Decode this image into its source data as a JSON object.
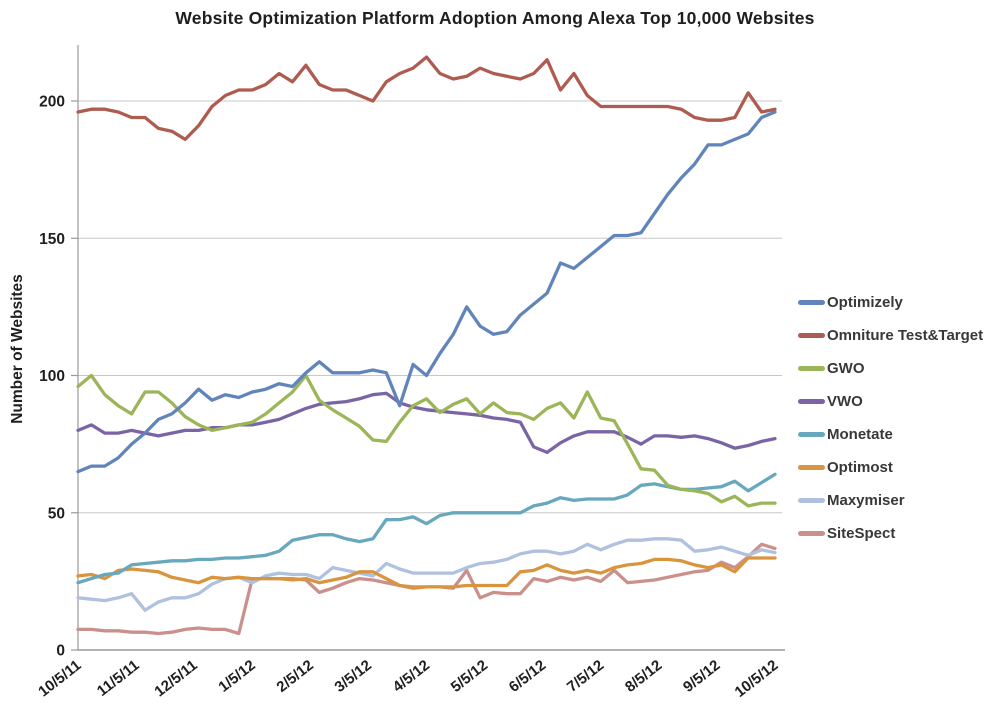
{
  "chart_data": {
    "type": "line",
    "title": "Website Optimization Platform Adoption Among Alexa Top 10,000 Websites",
    "xlabel": "",
    "ylabel": "Number of Websites",
    "ylim": [
      0,
      220
    ],
    "yticks": [
      0,
      50,
      100,
      150,
      200
    ],
    "grid": true,
    "legend_position": "right",
    "x_frequency": "weekly",
    "categories": [
      "10/5/11",
      "11/5/11",
      "12/5/11",
      "1/5/12",
      "2/5/12",
      "3/5/12",
      "4/5/12",
      "5/5/12",
      "6/5/12",
      "7/5/12",
      "8/5/12",
      "9/5/12",
      "10/5/12"
    ],
    "style": {
      "grid_color": "#c8c8c8",
      "axis_color": "#9a9a9a",
      "text_color": "#1f1f1f",
      "background": "#ffffff"
    },
    "series": [
      {
        "name": "Optimizely",
        "color": "#6185bb",
        "values": [
          65,
          67,
          67,
          70,
          75,
          79,
          84,
          86,
          90,
          95,
          91,
          93,
          92,
          94,
          95,
          97,
          96,
          101,
          105,
          101,
          101,
          101,
          102,
          101,
          89,
          104,
          100,
          108,
          115,
          125,
          118,
          115,
          116,
          122,
          126,
          130,
          141,
          139,
          143,
          147,
          151,
          151,
          152,
          159,
          166,
          172,
          177,
          184,
          184,
          186,
          188,
          194,
          196
        ]
      },
      {
        "name": "Omniture Test&Target",
        "color": "#ae5b50",
        "values": [
          196,
          197,
          197,
          196,
          194,
          194,
          190,
          189,
          186,
          191,
          198,
          202,
          204,
          204,
          206,
          210,
          207,
          213,
          206,
          204,
          204,
          202,
          200,
          207,
          210,
          212,
          216,
          210,
          208,
          209,
          212,
          210,
          209,
          208,
          210,
          215,
          204,
          210,
          202,
          198,
          198,
          198,
          198,
          198,
          198,
          197,
          194,
          193,
          193,
          194,
          203,
          196,
          197
        ]
      },
      {
        "name": "GWO",
        "color": "#9bb558",
        "values": [
          96,
          100,
          93,
          89,
          86,
          94,
          94,
          90,
          85,
          82,
          80,
          81,
          82,
          83,
          86,
          90,
          94,
          100,
          91,
          87.5,
          84.5,
          81.5,
          76.5,
          76,
          83,
          89,
          91.5,
          86.5,
          89.5,
          91.5,
          86,
          90,
          86.5,
          86,
          84,
          88,
          90,
          84.5,
          94,
          84.5,
          83.5,
          75,
          66,
          65.5,
          60,
          58.5,
          58,
          57,
          54,
          56,
          52.5,
          53.5,
          53.5
        ]
      },
      {
        "name": "VWO",
        "color": "#7a64a5",
        "values": [
          80,
          82,
          79,
          79,
          80,
          79,
          78,
          79,
          80,
          80,
          81,
          81,
          82,
          82,
          83,
          84,
          86,
          88,
          89.5,
          90,
          90.5,
          91.5,
          93,
          93.5,
          90,
          88.5,
          87.5,
          87,
          86.5,
          86,
          85.5,
          84.5,
          84,
          83,
          74,
          72,
          75.5,
          78,
          79.5,
          79.5,
          79.5,
          77.5,
          75,
          78,
          78,
          77.5,
          78,
          77,
          75.5,
          73.5,
          74.5,
          76,
          77
        ]
      },
      {
        "name": "Monetate",
        "color": "#68a8be",
        "values": [
          24.5,
          26,
          27.5,
          28,
          31,
          31.5,
          32,
          32.5,
          32.5,
          33,
          33,
          33.5,
          33.5,
          34,
          34.5,
          36,
          40,
          41,
          42,
          42,
          40.5,
          39.5,
          40.5,
          47.5,
          47.5,
          48.5,
          46,
          49,
          50,
          50,
          50,
          50,
          50,
          50,
          52.5,
          53.5,
          55.5,
          54.5,
          55,
          55,
          55,
          56.5,
          60,
          60.5,
          59.5,
          58.5,
          58.5,
          59,
          59.5,
          61.5,
          58,
          61,
          64
        ]
      },
      {
        "name": "Optimost",
        "color": "#d9953e",
        "values": [
          27,
          27.5,
          26,
          29,
          29.5,
          29,
          28.5,
          26.5,
          25.5,
          24.5,
          26.5,
          26,
          26.5,
          26,
          26,
          26,
          25.5,
          26,
          24.5,
          25.5,
          26.5,
          28.5,
          28.5,
          26,
          23.5,
          22.5,
          23,
          23,
          23,
          23.5,
          23.5,
          23.5,
          23.5,
          28.5,
          29,
          31,
          29,
          28,
          29,
          28,
          30,
          31,
          31.5,
          33,
          33,
          32.5,
          31,
          30,
          31,
          28.5,
          33.5,
          33.5,
          33.5
        ]
      },
      {
        "name": "Maxymiser",
        "color": "#afc1de",
        "values": [
          19,
          18.5,
          18,
          19,
          20.5,
          14.5,
          17.5,
          19,
          19,
          20.5,
          24,
          26,
          26.5,
          24.5,
          27,
          28,
          27.5,
          27.5,
          26,
          30,
          29,
          28,
          27,
          31.5,
          29.5,
          28,
          28,
          28,
          28,
          30,
          31.5,
          32,
          33,
          35,
          36,
          36,
          35,
          36,
          38.5,
          36.5,
          38.5,
          40,
          40,
          40.5,
          40.5,
          40,
          36,
          36.5,
          37.5,
          36,
          34.5,
          36.5,
          35.5
        ]
      },
      {
        "name": "SiteSpect",
        "color": "#ca908c",
        "values": [
          7.5,
          7.5,
          7,
          7,
          6.5,
          6.5,
          6,
          6.5,
          7.5,
          8,
          7.5,
          7.5,
          6,
          26,
          26,
          26,
          26,
          25.5,
          21,
          22.5,
          24.5,
          26,
          25.5,
          24.5,
          23.5,
          23,
          23,
          23,
          22.5,
          29,
          19,
          21,
          20.5,
          20.5,
          26,
          25,
          26.5,
          25.5,
          26.5,
          25,
          29,
          24.5,
          25,
          25.5,
          26.5,
          27.5,
          28.5,
          29,
          32,
          30,
          34,
          38.5,
          37
        ]
      }
    ]
  }
}
